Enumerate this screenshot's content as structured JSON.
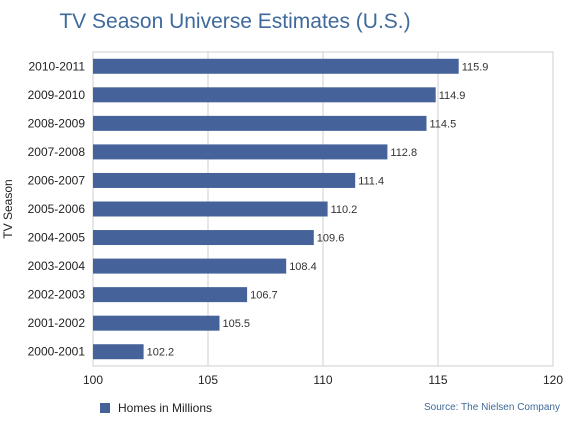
{
  "chart_data": {
    "type": "bar",
    "orientation": "horizontal",
    "title": "TV Season Universe Estimates (U.S.)",
    "ylabel": "TV Season",
    "xlabel": "",
    "xlim": [
      100,
      120
    ],
    "xticks": [
      100,
      105,
      110,
      115,
      120
    ],
    "grid": true,
    "categories": [
      "2000-2001",
      "2001-2002",
      "2002-2003",
      "2003-2004",
      "2004-2005",
      "2005-2006",
      "2006-2007",
      "2007-2008",
      "2008-2009",
      "2009-2010",
      "2010-2011"
    ],
    "series": [
      {
        "name": "Homes in Millions",
        "values": [
          102.2,
          105.5,
          106.7,
          108.4,
          109.6,
          110.2,
          111.4,
          112.8,
          114.5,
          114.9,
          115.9
        ]
      }
    ],
    "legend_position": "bottom-left",
    "bar_color": "#45639a",
    "source": "Source: The Nielsen Company"
  }
}
